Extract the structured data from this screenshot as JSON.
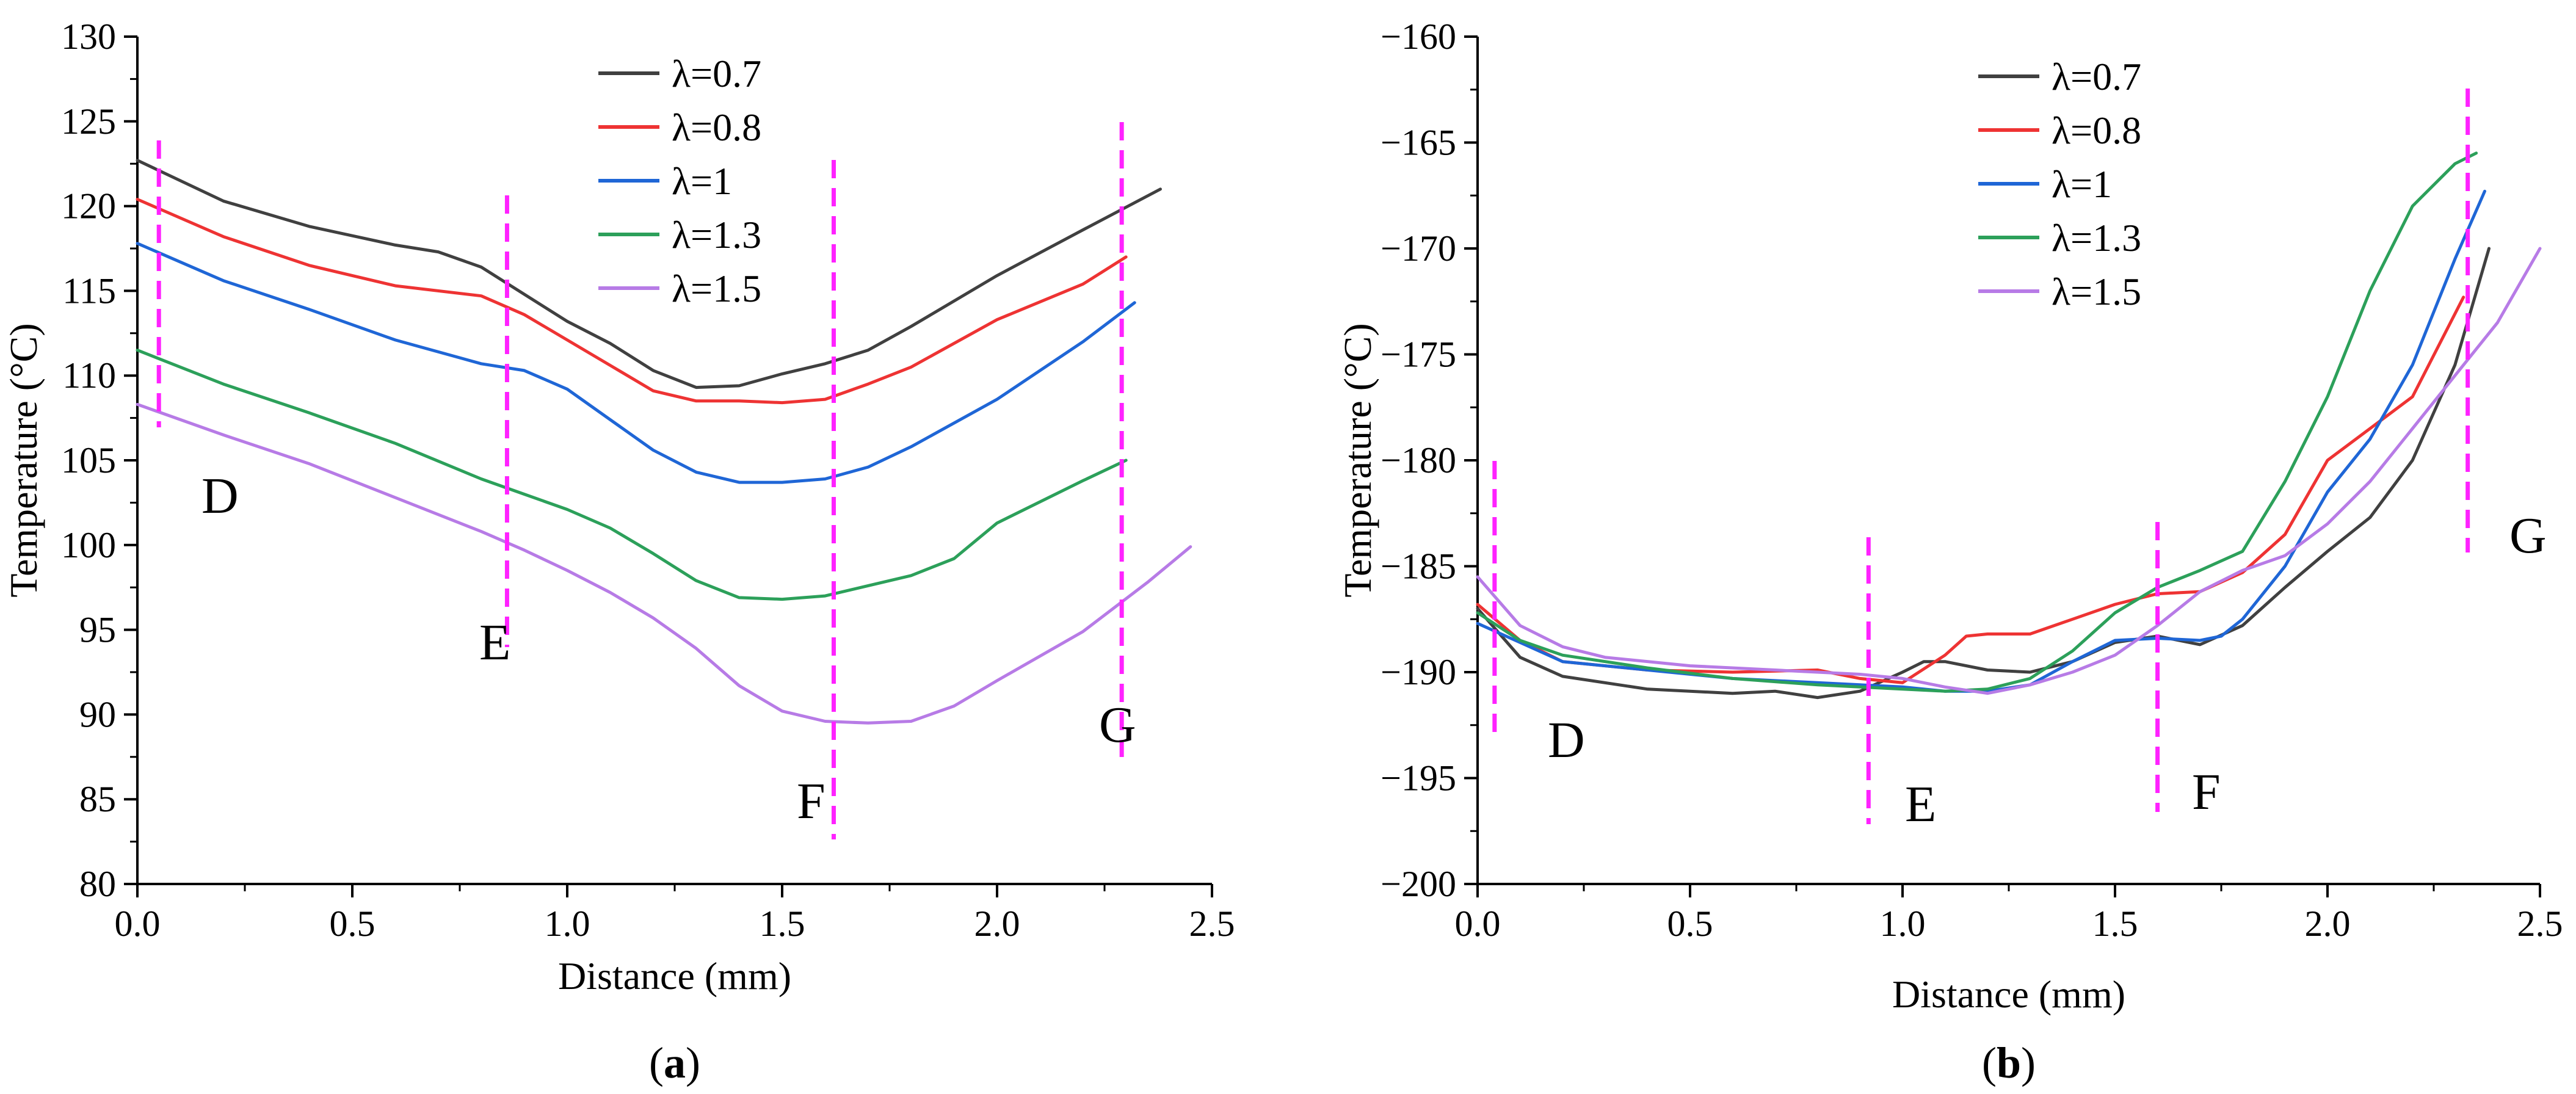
{
  "chart_data": [
    {
      "panel_label": "(a)",
      "type": "line",
      "xlabel": "Distance (mm)",
      "ylabel": "Temperature (°C)",
      "xlim": [
        0,
        2.5
      ],
      "ylim": [
        80,
        130
      ],
      "x_ticks": [
        0.0,
        0.5,
        1.0,
        1.5,
        2.0,
        2.5
      ],
      "y_ticks": [
        80,
        85,
        90,
        95,
        100,
        105,
        110,
        115,
        120,
        125,
        130
      ],
      "grid": false,
      "legend_position": "top-center",
      "series": [
        {
          "name": "λ=0.7",
          "color": "#404040",
          "x": [
            0,
            0.2,
            0.4,
            0.6,
            0.7,
            0.8,
            0.9,
            1.0,
            1.1,
            1.2,
            1.3,
            1.4,
            1.5,
            1.6,
            1.7,
            1.8,
            2.0,
            2.2,
            2.38
          ],
          "y": [
            122.7,
            120.3,
            118.8,
            117.7,
            117.3,
            116.4,
            114.8,
            113.2,
            111.9,
            110.3,
            109.3,
            109.4,
            110.1,
            110.7,
            111.5,
            112.9,
            115.9,
            118.6,
            121.0
          ]
        },
        {
          "name": "λ=0.8",
          "color": "#ee3333",
          "x": [
            0,
            0.2,
            0.4,
            0.6,
            0.8,
            0.9,
            1.0,
            1.1,
            1.2,
            1.3,
            1.4,
            1.5,
            1.6,
            1.7,
            1.8,
            2.0,
            2.2,
            2.3
          ],
          "y": [
            120.4,
            118.2,
            116.5,
            115.3,
            114.7,
            113.6,
            112.1,
            110.6,
            109.1,
            108.5,
            108.5,
            108.4,
            108.6,
            109.5,
            110.5,
            113.3,
            115.4,
            117.0
          ]
        },
        {
          "name": "λ=1",
          "color": "#1f66d6",
          "x": [
            0,
            0.2,
            0.4,
            0.6,
            0.8,
            0.9,
            1.0,
            1.1,
            1.2,
            1.3,
            1.4,
            1.5,
            1.6,
            1.7,
            1.8,
            2.0,
            2.2,
            2.32
          ],
          "y": [
            117.8,
            115.6,
            113.9,
            112.1,
            110.7,
            110.3,
            109.2,
            107.4,
            105.6,
            104.3,
            103.7,
            103.7,
            103.9,
            104.6,
            105.8,
            108.6,
            112.0,
            114.3
          ]
        },
        {
          "name": "λ=1.3",
          "color": "#2ca05a",
          "x": [
            0,
            0.2,
            0.4,
            0.6,
            0.8,
            0.9,
            1.0,
            1.1,
            1.2,
            1.3,
            1.4,
            1.5,
            1.6,
            1.7,
            1.8,
            1.9,
            2.0,
            2.2,
            2.3
          ],
          "y": [
            111.5,
            109.5,
            107.8,
            106.0,
            103.9,
            103.0,
            102.1,
            101.0,
            99.5,
            97.9,
            96.9,
            96.8,
            97.0,
            97.6,
            98.2,
            99.2,
            101.3,
            103.8,
            105.0
          ]
        },
        {
          "name": "λ=1.5",
          "color": "#b77be6",
          "x": [
            0,
            0.2,
            0.4,
            0.6,
            0.8,
            0.9,
            1.0,
            1.1,
            1.2,
            1.3,
            1.4,
            1.5,
            1.6,
            1.7,
            1.8,
            1.9,
            2.0,
            2.2,
            2.35,
            2.45
          ],
          "y": [
            108.3,
            106.5,
            104.8,
            102.8,
            100.8,
            99.7,
            98.5,
            97.2,
            95.7,
            93.9,
            91.7,
            90.2,
            89.6,
            89.5,
            89.6,
            90.5,
            92.0,
            94.9,
            97.8,
            99.9
          ]
        }
      ],
      "markers": [
        {
          "label": "D",
          "x": 0.05
        },
        {
          "label": "E",
          "x": 0.86
        },
        {
          "label": "F",
          "x": 1.62
        },
        {
          "label": "G",
          "x": 2.29
        }
      ]
    },
    {
      "panel_label": "(b)",
      "type": "line",
      "xlabel": "Distance (mm)",
      "ylabel": "Temperature (°C)",
      "xlim": [
        0,
        2.5
      ],
      "ylim": [
        -200,
        -160
      ],
      "x_ticks": [
        0.0,
        0.5,
        1.0,
        1.5,
        2.0,
        2.5
      ],
      "y_ticks": [
        -200,
        -195,
        -190,
        -185,
        -180,
        -175,
        -170,
        -165,
        -160
      ],
      "grid": false,
      "legend_position": "top-center",
      "series": [
        {
          "name": "λ=0.7",
          "color": "#404040",
          "x": [
            0,
            0.1,
            0.2,
            0.4,
            0.6,
            0.7,
            0.8,
            0.9,
            1.0,
            1.05,
            1.1,
            1.2,
            1.3,
            1.4,
            1.5,
            1.6,
            1.7,
            1.8,
            1.9,
            2.0,
            2.1,
            2.2,
            2.3,
            2.38
          ],
          "y": [
            -187.0,
            -189.3,
            -190.2,
            -190.8,
            -191.0,
            -190.9,
            -191.2,
            -190.9,
            -190.0,
            -189.5,
            -189.5,
            -189.9,
            -190.0,
            -189.5,
            -188.6,
            -188.3,
            -188.7,
            -187.8,
            -186.0,
            -184.3,
            -182.7,
            -180.0,
            -175.5,
            -170.0
          ]
        },
        {
          "name": "λ=0.8",
          "color": "#ee3333",
          "x": [
            0,
            0.1,
            0.2,
            0.4,
            0.6,
            0.8,
            0.9,
            1.0,
            1.1,
            1.15,
            1.2,
            1.3,
            1.4,
            1.5,
            1.6,
            1.7,
            1.8,
            1.9,
            2.0,
            2.1,
            2.2,
            2.32
          ],
          "y": [
            -186.8,
            -188.5,
            -189.5,
            -189.9,
            -190.0,
            -189.9,
            -190.3,
            -190.5,
            -189.2,
            -188.3,
            -188.2,
            -188.2,
            -187.5,
            -186.8,
            -186.3,
            -186.2,
            -185.3,
            -183.5,
            -180.0,
            -178.5,
            -177.0,
            -172.3
          ]
        },
        {
          "name": "λ=1",
          "color": "#1f66d6",
          "x": [
            0,
            0.1,
            0.2,
            0.4,
            0.6,
            0.8,
            0.9,
            1.0,
            1.1,
            1.2,
            1.3,
            1.4,
            1.5,
            1.6,
            1.7,
            1.75,
            1.8,
            1.9,
            2.0,
            2.1,
            2.2,
            2.3,
            2.37
          ],
          "y": [
            -187.7,
            -188.6,
            -189.5,
            -189.9,
            -190.3,
            -190.5,
            -190.6,
            -190.7,
            -190.9,
            -190.9,
            -190.6,
            -189.5,
            -188.5,
            -188.4,
            -188.5,
            -188.3,
            -187.5,
            -185.0,
            -181.5,
            -179.0,
            -175.5,
            -170.5,
            -167.3
          ]
        },
        {
          "name": "λ=1.3",
          "color": "#2ca05a",
          "x": [
            0,
            0.1,
            0.2,
            0.4,
            0.6,
            0.8,
            0.9,
            1.0,
            1.1,
            1.2,
            1.3,
            1.4,
            1.5,
            1.6,
            1.7,
            1.8,
            1.9,
            2.0,
            2.1,
            2.2,
            2.3,
            2.35
          ],
          "y": [
            -187.2,
            -188.5,
            -189.2,
            -189.8,
            -190.3,
            -190.6,
            -190.7,
            -190.8,
            -190.9,
            -190.8,
            -190.3,
            -189.0,
            -187.2,
            -186.0,
            -185.2,
            -184.3,
            -181.0,
            -177.0,
            -172.0,
            -168.0,
            -166.0,
            -165.5
          ]
        },
        {
          "name": "λ=1.5",
          "color": "#b77be6",
          "x": [
            0,
            0.1,
            0.2,
            0.3,
            0.5,
            0.7,
            0.9,
            1.0,
            1.1,
            1.2,
            1.3,
            1.4,
            1.5,
            1.6,
            1.7,
            1.8,
            1.9,
            2.0,
            2.1,
            2.2,
            2.3,
            2.4,
            2.5
          ],
          "y": [
            -185.5,
            -187.8,
            -188.8,
            -189.3,
            -189.7,
            -189.9,
            -190.1,
            -190.3,
            -190.7,
            -191.0,
            -190.6,
            -190.0,
            -189.2,
            -187.8,
            -186.2,
            -185.2,
            -184.5,
            -183.0,
            -181.0,
            -178.5,
            -176.0,
            -173.5,
            -170.0
          ]
        }
      ],
      "markers": [
        {
          "label": "D",
          "x": 0.04
        },
        {
          "label": "E",
          "x": 0.92
        },
        {
          "label": "F",
          "x": 1.6
        },
        {
          "label": "G",
          "x": 2.33
        }
      ]
    }
  ]
}
